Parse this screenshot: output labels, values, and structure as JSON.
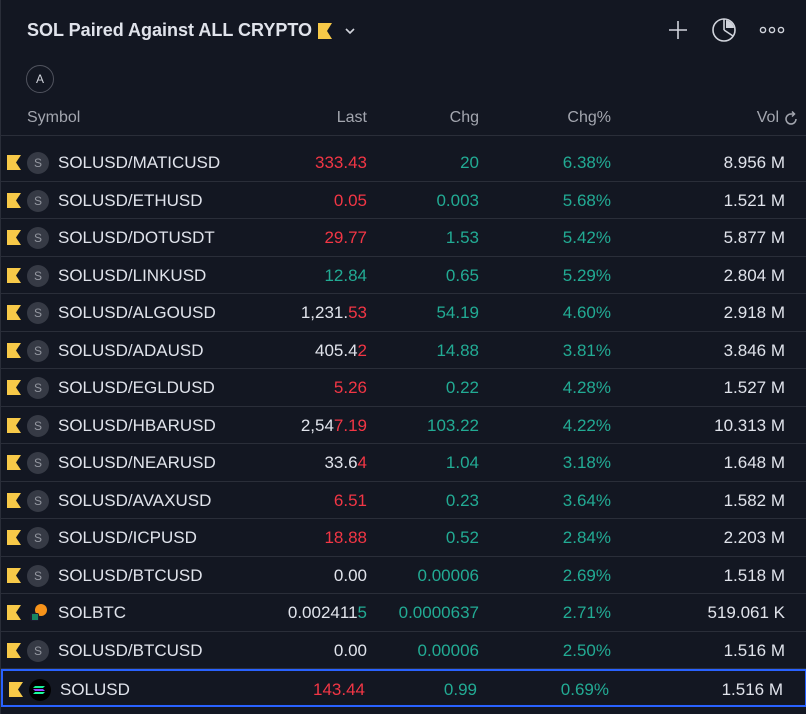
{
  "header": {
    "title": "SOL Paired Against ALL CRYPTO",
    "badge_letter": "A"
  },
  "columns": {
    "symbol": "Symbol",
    "last": "Last",
    "chg": "Chg",
    "chgp": "Chg%",
    "vol": "Vol"
  },
  "colors": {
    "up": "#22ab94",
    "down": "#f23645",
    "flag": "#f7c948",
    "selected_border": "#2962ff",
    "background": "#131722"
  },
  "rows": [
    {
      "symbol": "SOLUSD/MATICUSD",
      "last_a": "",
      "last_b": "333.43",
      "last_b_color": "red",
      "chg": "20",
      "chgp": "6.38%",
      "vol": "8.956 M",
      "icon": "S"
    },
    {
      "symbol": "SOLUSD/ETHUSD",
      "last_a": "",
      "last_b": "0.05",
      "last_b_color": "red",
      "chg": "0.003",
      "chgp": "5.68%",
      "vol": "1.521 M",
      "icon": "S"
    },
    {
      "symbol": "SOLUSD/DOTUSDT",
      "last_a": "",
      "last_b": "29.77",
      "last_b_color": "red",
      "chg": "1.53",
      "chgp": "5.42%",
      "vol": "5.877 M",
      "icon": "S"
    },
    {
      "symbol": "SOLUSD/LINKUSD",
      "last_a": "",
      "last_b": "12.84",
      "last_b_color": "green",
      "chg": "0.65",
      "chgp": "5.29%",
      "vol": "2.804 M",
      "icon": "S"
    },
    {
      "symbol": "SOLUSD/ALGOUSD",
      "last_a": "1,231.",
      "last_b": "53",
      "last_b_color": "red",
      "chg": "54.19",
      "chgp": "4.60%",
      "vol": "2.918 M",
      "icon": "S"
    },
    {
      "symbol": "SOLUSD/ADAUSD",
      "last_a": "405.4",
      "last_b": "2",
      "last_b_color": "red",
      "chg": "14.88",
      "chgp": "3.81%",
      "vol": "3.846 M",
      "icon": "S"
    },
    {
      "symbol": "SOLUSD/EGLDUSD",
      "last_a": "",
      "last_b": "5.26",
      "last_b_color": "red",
      "chg": "0.22",
      "chgp": "4.28%",
      "vol": "1.527 M",
      "icon": "S"
    },
    {
      "symbol": "SOLUSD/HBARUSD",
      "last_a": "2,54",
      "last_b": "7.19",
      "last_b_color": "red",
      "chg": "103.22",
      "chgp": "4.22%",
      "vol": "10.313 M",
      "icon": "S"
    },
    {
      "symbol": "SOLUSD/NEARUSD",
      "last_a": "33.6",
      "last_b": "4",
      "last_b_color": "red",
      "chg": "1.04",
      "chgp": "3.18%",
      "vol": "1.648 M",
      "icon": "S"
    },
    {
      "symbol": "SOLUSD/AVAXUSD",
      "last_a": "",
      "last_b": "6.51",
      "last_b_color": "red",
      "chg": "0.23",
      "chgp": "3.64%",
      "vol": "1.582 M",
      "icon": "S"
    },
    {
      "symbol": "SOLUSD/ICPUSD",
      "last_a": "",
      "last_b": "18.88",
      "last_b_color": "red",
      "chg": "0.52",
      "chgp": "2.84%",
      "vol": "2.203 M",
      "icon": "S"
    },
    {
      "symbol": "SOLUSD/BTCUSD",
      "last_a": "0.00",
      "last_b": "",
      "last_b_color": "white",
      "chg": "0.00006",
      "chgp": "2.69%",
      "vol": "1.518 M",
      "icon": "S"
    },
    {
      "symbol": "SOLBTC",
      "last_a": "0.002411",
      "last_b": "5",
      "last_b_color": "green",
      "chg": "0.0000637",
      "chgp": "2.71%",
      "vol": "519.061 K",
      "icon": "coin"
    },
    {
      "symbol": "SOLUSD/BTCUSD",
      "last_a": "0.00",
      "last_b": "",
      "last_b_color": "white",
      "chg": "0.00006",
      "chgp": "2.50%",
      "vol": "1.516 M",
      "icon": "S"
    },
    {
      "symbol": "SOLUSD",
      "last_a": "",
      "last_b": "143.44",
      "last_b_color": "red",
      "chg": "0.99",
      "chgp": "0.69%",
      "vol": "1.516 M",
      "icon": "sol",
      "selected": true
    }
  ]
}
